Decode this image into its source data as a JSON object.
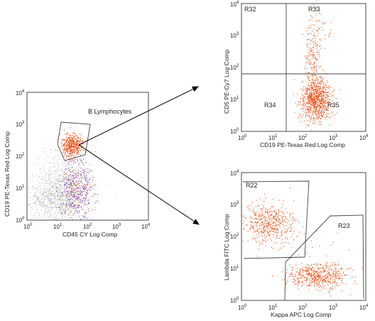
{
  "figure": {
    "arrow_color": "#000000",
    "event_color": "#e8541a",
    "panels": [
      {
        "id": "main",
        "type": "scatter",
        "x_label": "CD45 CY Log Comp",
        "y_label": "CD19 PE-Texas Red Log Comp",
        "x_ticks": [
          {
            "base": "10",
            "exp": "0"
          },
          {
            "base": "10",
            "exp": "1"
          },
          {
            "base": "10",
            "exp": "2"
          },
          {
            "base": "10",
            "exp": "3"
          },
          {
            "base": "10",
            "exp": "4"
          }
        ],
        "y_ticks": [
          {
            "base": "10",
            "exp": "0"
          },
          {
            "base": "10",
            "exp": "1"
          },
          {
            "base": "10",
            "exp": "2"
          },
          {
            "base": "10",
            "exp": "3"
          },
          {
            "base": "10",
            "exp": "4"
          }
        ],
        "gate_label": "B Lymphocytes"
      },
      {
        "id": "top",
        "type": "scatter",
        "x_label": "CD19 PE-Texas Red Log Comp",
        "y_label": "CD5 PE-Cy7 Log Comp",
        "x_ticks": [
          {
            "base": "10",
            "exp": "0"
          },
          {
            "base": "10",
            "exp": "1"
          },
          {
            "base": "10",
            "exp": "2"
          },
          {
            "base": "10",
            "exp": "3"
          },
          {
            "base": "10",
            "exp": "4"
          }
        ],
        "y_ticks": [
          {
            "base": "10",
            "exp": "0"
          },
          {
            "base": "10",
            "exp": "1"
          },
          {
            "base": "10",
            "exp": "2"
          },
          {
            "base": "10",
            "exp": "3"
          },
          {
            "base": "10",
            "exp": "4"
          }
        ],
        "regions": [
          "R32",
          "R33",
          "R34",
          "R35"
        ]
      },
      {
        "id": "bottom",
        "type": "scatter",
        "x_label": "Kappa APC Log Comp",
        "y_label": "Lambda FITC Log Comp",
        "x_ticks": [
          {
            "base": "10",
            "exp": "0"
          },
          {
            "base": "10",
            "exp": "1"
          },
          {
            "base": "10",
            "exp": "2"
          },
          {
            "base": "10",
            "exp": "3"
          },
          {
            "base": "10",
            "exp": "4"
          }
        ],
        "y_ticks": [
          {
            "base": "10",
            "exp": "0"
          },
          {
            "base": "10",
            "exp": "1"
          },
          {
            "base": "10",
            "exp": "2"
          },
          {
            "base": "10",
            "exp": "3"
          },
          {
            "base": "10",
            "exp": "4"
          }
        ],
        "regions": [
          "R22",
          "R23"
        ]
      }
    ]
  }
}
